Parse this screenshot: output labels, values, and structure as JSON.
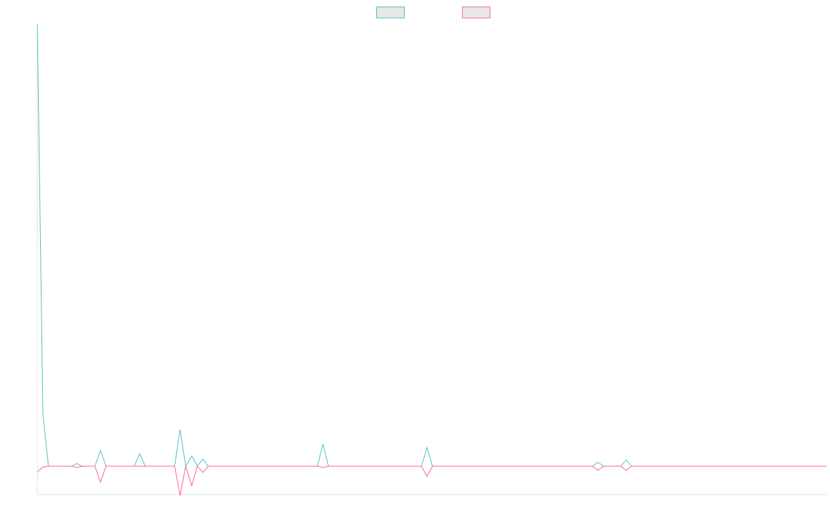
{
  "chart_data": {
    "type": "line",
    "x": [
      0,
      1,
      2,
      6.1,
      7.1,
      8.1,
      10.4,
      11.4,
      12.4,
      17.5,
      18.5,
      19.5,
      24.8,
      25.8,
      26.8,
      27.9,
      28.9,
      29.9,
      30.9,
      50.6,
      51.6,
      52.6,
      69.4,
      70.4,
      71.4,
      100.3,
      101.3,
      102.3,
      105.4,
      106.4,
      107.4,
      142.6
    ],
    "series": [
      {
        "color": "#4bc0c0",
        "values": [
          100,
          12,
          0,
          0,
          0.6,
          0,
          0,
          3.6,
          0,
          0,
          2.8,
          0,
          0,
          8.3,
          0,
          2.3,
          0,
          1.6,
          0,
          0,
          5,
          0,
          0,
          4.2,
          0,
          0,
          0.9,
          0,
          0,
          1.4,
          0,
          0
        ]
      },
      {
        "color": "#ff6384",
        "values": [
          -1.3,
          -0.2,
          0,
          0,
          -0.3,
          0,
          0,
          -3.6,
          0,
          0,
          0,
          0,
          0,
          -6.6,
          0,
          -4.4,
          0,
          -1.4,
          0,
          0,
          -0.3,
          0,
          0,
          -2.3,
          0,
          0,
          -0.9,
          0,
          0,
          -0.9,
          0,
          0
        ]
      }
    ],
    "xlim": [
      0,
      142.6
    ],
    "ylim": [
      -6.4,
      100
    ],
    "legend": "top"
  }
}
